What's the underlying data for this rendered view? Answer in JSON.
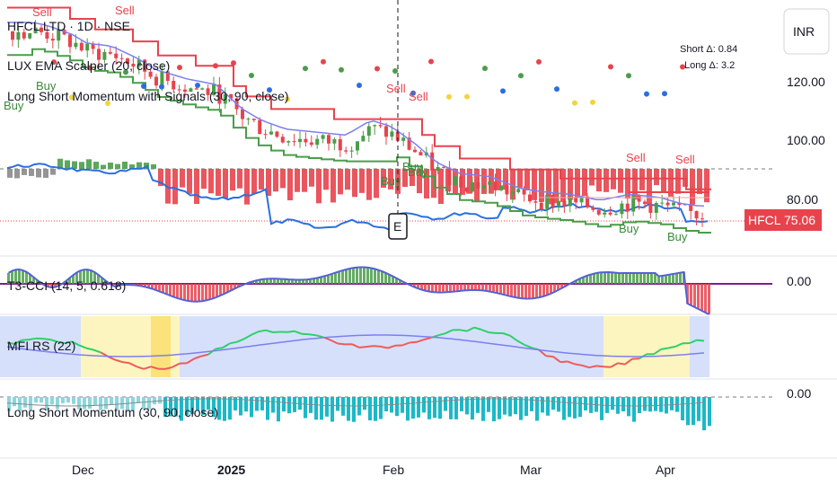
{
  "header": {
    "symbol_line": "HFCL LTD · 1D · NSE",
    "indicator1": "LUX EMA Scalper (20, close)",
    "indicator2": "Long Short Momentum with Signals (30, 90, close)",
    "deltas": [
      "Short Δ: 0.84",
      "Long Δ: 3.2"
    ]
  },
  "currency_button": "INR",
  "price_axis": {
    "ticks": [
      "120.00",
      "100.00",
      "80.00"
    ],
    "last_symbol": "HFCL",
    "last_price": "75.06"
  },
  "panes": {
    "t3cci": {
      "label": "T3-CCI (14, 5, 0.618)",
      "zero": "0.00"
    },
    "mfi": {
      "label": "MFI RS (22)"
    },
    "lsm": {
      "label": "Long Short Momentum (30, 90, close)",
      "zero": "0.00"
    }
  },
  "event_marker": "E",
  "x_axis": {
    "labels": [
      "Dec",
      "2025",
      "Feb",
      "Mar",
      "Apr"
    ]
  },
  "signals": {
    "sell": [
      "Sell",
      "Sell",
      "Sell",
      "Sell",
      "Sell",
      "Sell"
    ],
    "buy": [
      "Buy",
      "Buy",
      "Buy",
      "Buy",
      "Buy",
      "Buy",
      "Buy"
    ]
  },
  "colors": {
    "bull": "#4a9d4a",
    "bear": "#e8434d",
    "ema": "#7b7ff0",
    "momentum_line": "#2a6fe0",
    "cci_line": "#5560d6",
    "cci_zero": "#7b1f8a",
    "mfi_bg": "#d6e0fb",
    "mfi_hl": "#fdf5c0",
    "teal": "#1bb9c8",
    "price_tag": "#e8434d"
  },
  "chart_data": {
    "type": "candlestick",
    "price_series": [
      [
        "2024-11-25",
        137
      ],
      [
        "2024-11-28",
        136
      ],
      [
        "2024-12-03",
        133
      ],
      [
        "2024-12-06",
        130
      ],
      [
        "2024-12-11",
        129
      ],
      [
        "2024-12-16",
        125
      ],
      [
        "2024-12-20",
        121
      ],
      [
        "2024-12-26",
        118
      ],
      [
        "2025-01-01",
        116
      ],
      [
        "2025-01-06",
        108
      ],
      [
        "2025-01-10",
        104
      ],
      [
        "2025-01-15",
        101
      ],
      [
        "2025-01-21",
        100
      ],
      [
        "2025-01-27",
        99
      ],
      [
        "2025-02-01",
        104
      ],
      [
        "2025-02-05",
        102
      ],
      [
        "2025-02-10",
        96
      ],
      [
        "2025-02-14",
        90
      ],
      [
        "2025-02-19",
        86
      ],
      [
        "2025-02-25",
        85
      ],
      [
        "2025-03-03",
        81
      ],
      [
        "2025-03-07",
        80
      ],
      [
        "2025-03-13",
        79
      ],
      [
        "2025-03-19",
        77
      ],
      [
        "2025-03-25",
        79
      ],
      [
        "2025-03-31",
        78
      ],
      [
        "2025-04-04",
        76
      ],
      [
        "2025-04-08",
        75.06
      ]
    ],
    "y_axis_ticks": [
      120,
      100,
      80
    ],
    "last_price": 75.06,
    "event_date": "2025-02-01",
    "x_tick_labels": [
      "Dec",
      "2025",
      "Feb",
      "Mar",
      "Apr"
    ]
  }
}
